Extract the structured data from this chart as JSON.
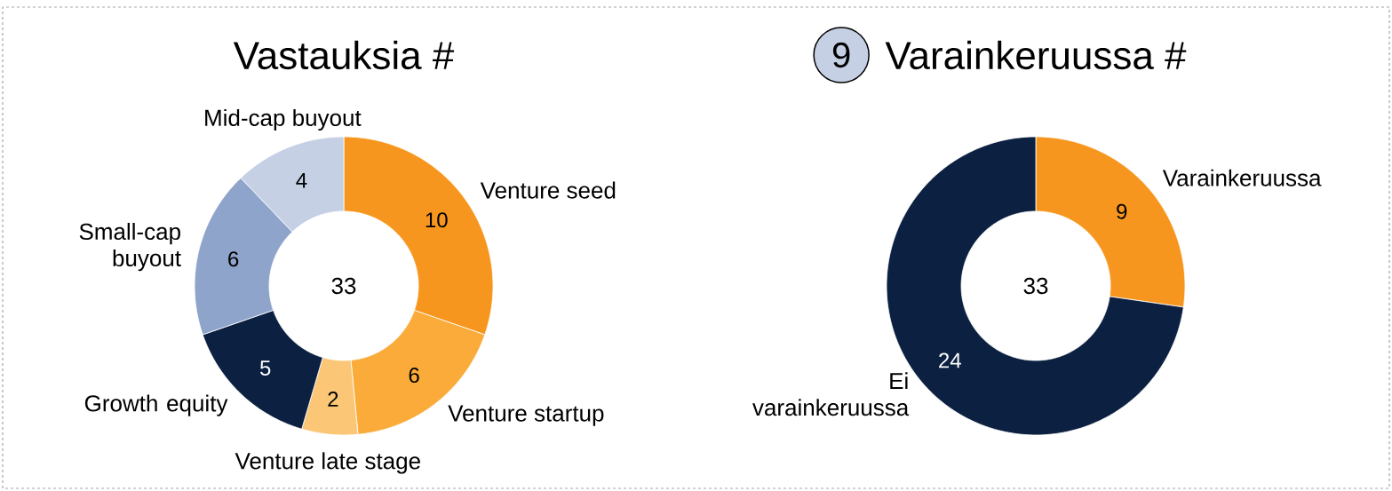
{
  "chart_data": [
    {
      "type": "donut",
      "title": "Vastauksia #",
      "categories": [
        "Venture seed",
        "Venture startup",
        "Venture late stage",
        "Growth equity",
        "Small-cap buyout",
        "Mid-cap buyout"
      ],
      "values": [
        10,
        6,
        2,
        5,
        6,
        4
      ],
      "colors": [
        "#f7961e",
        "#faab3a",
        "#fbc676",
        "#0c2041",
        "#8fa4cb",
        "#c5d0e4"
      ],
      "data_labels": true,
      "annotations": [
        "33"
      ]
    },
    {
      "type": "donut",
      "title": "Varainkeruussa #",
      "categories": [
        "Varainkeruussa",
        "Ei varainkeruussa"
      ],
      "values": [
        9,
        24
      ],
      "colors": [
        "#f7961e",
        "#0c2041"
      ],
      "data_labels": true,
      "annotations": [
        "33",
        "9"
      ]
    }
  ]
}
